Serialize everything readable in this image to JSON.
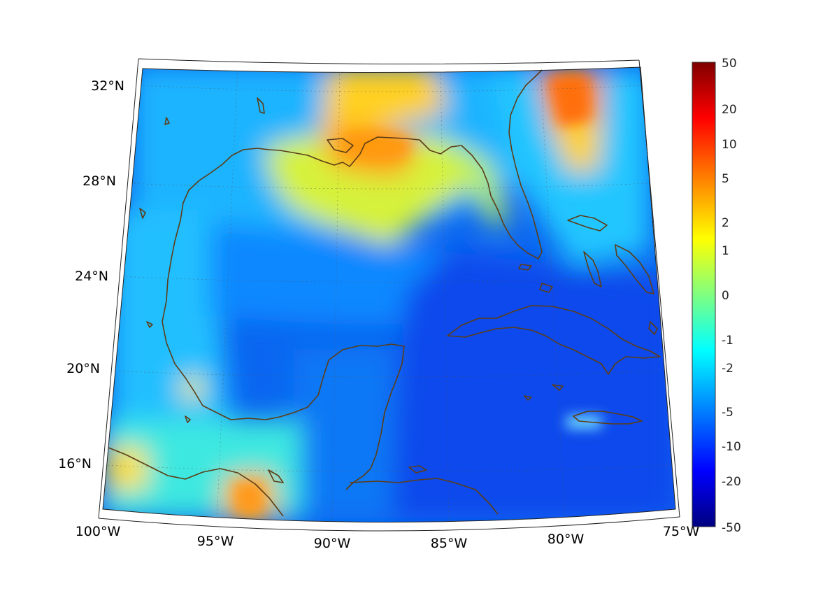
{
  "map": {
    "region": "Gulf of Mexico and Caribbean",
    "lon_range": [
      -100,
      -75
    ],
    "lat_range": [
      14,
      33
    ],
    "longitude_labels": [
      "100°W",
      "95°W",
      "90°W",
      "85°W",
      "80°W",
      "75°W"
    ],
    "latitude_labels": [
      "32°N",
      "28°N",
      "24°N",
      "20°N",
      "16°N"
    ],
    "coastline_color": "#5c3d16"
  },
  "colorbar": {
    "ticks": [
      "50",
      "20",
      "10",
      "5",
      "2",
      "1",
      "0",
      "-1",
      "-2",
      "-5",
      "-10",
      "-20",
      "-50"
    ],
    "colormap": "jet",
    "scale": "nonlinear",
    "range": [
      -50,
      50
    ]
  }
}
